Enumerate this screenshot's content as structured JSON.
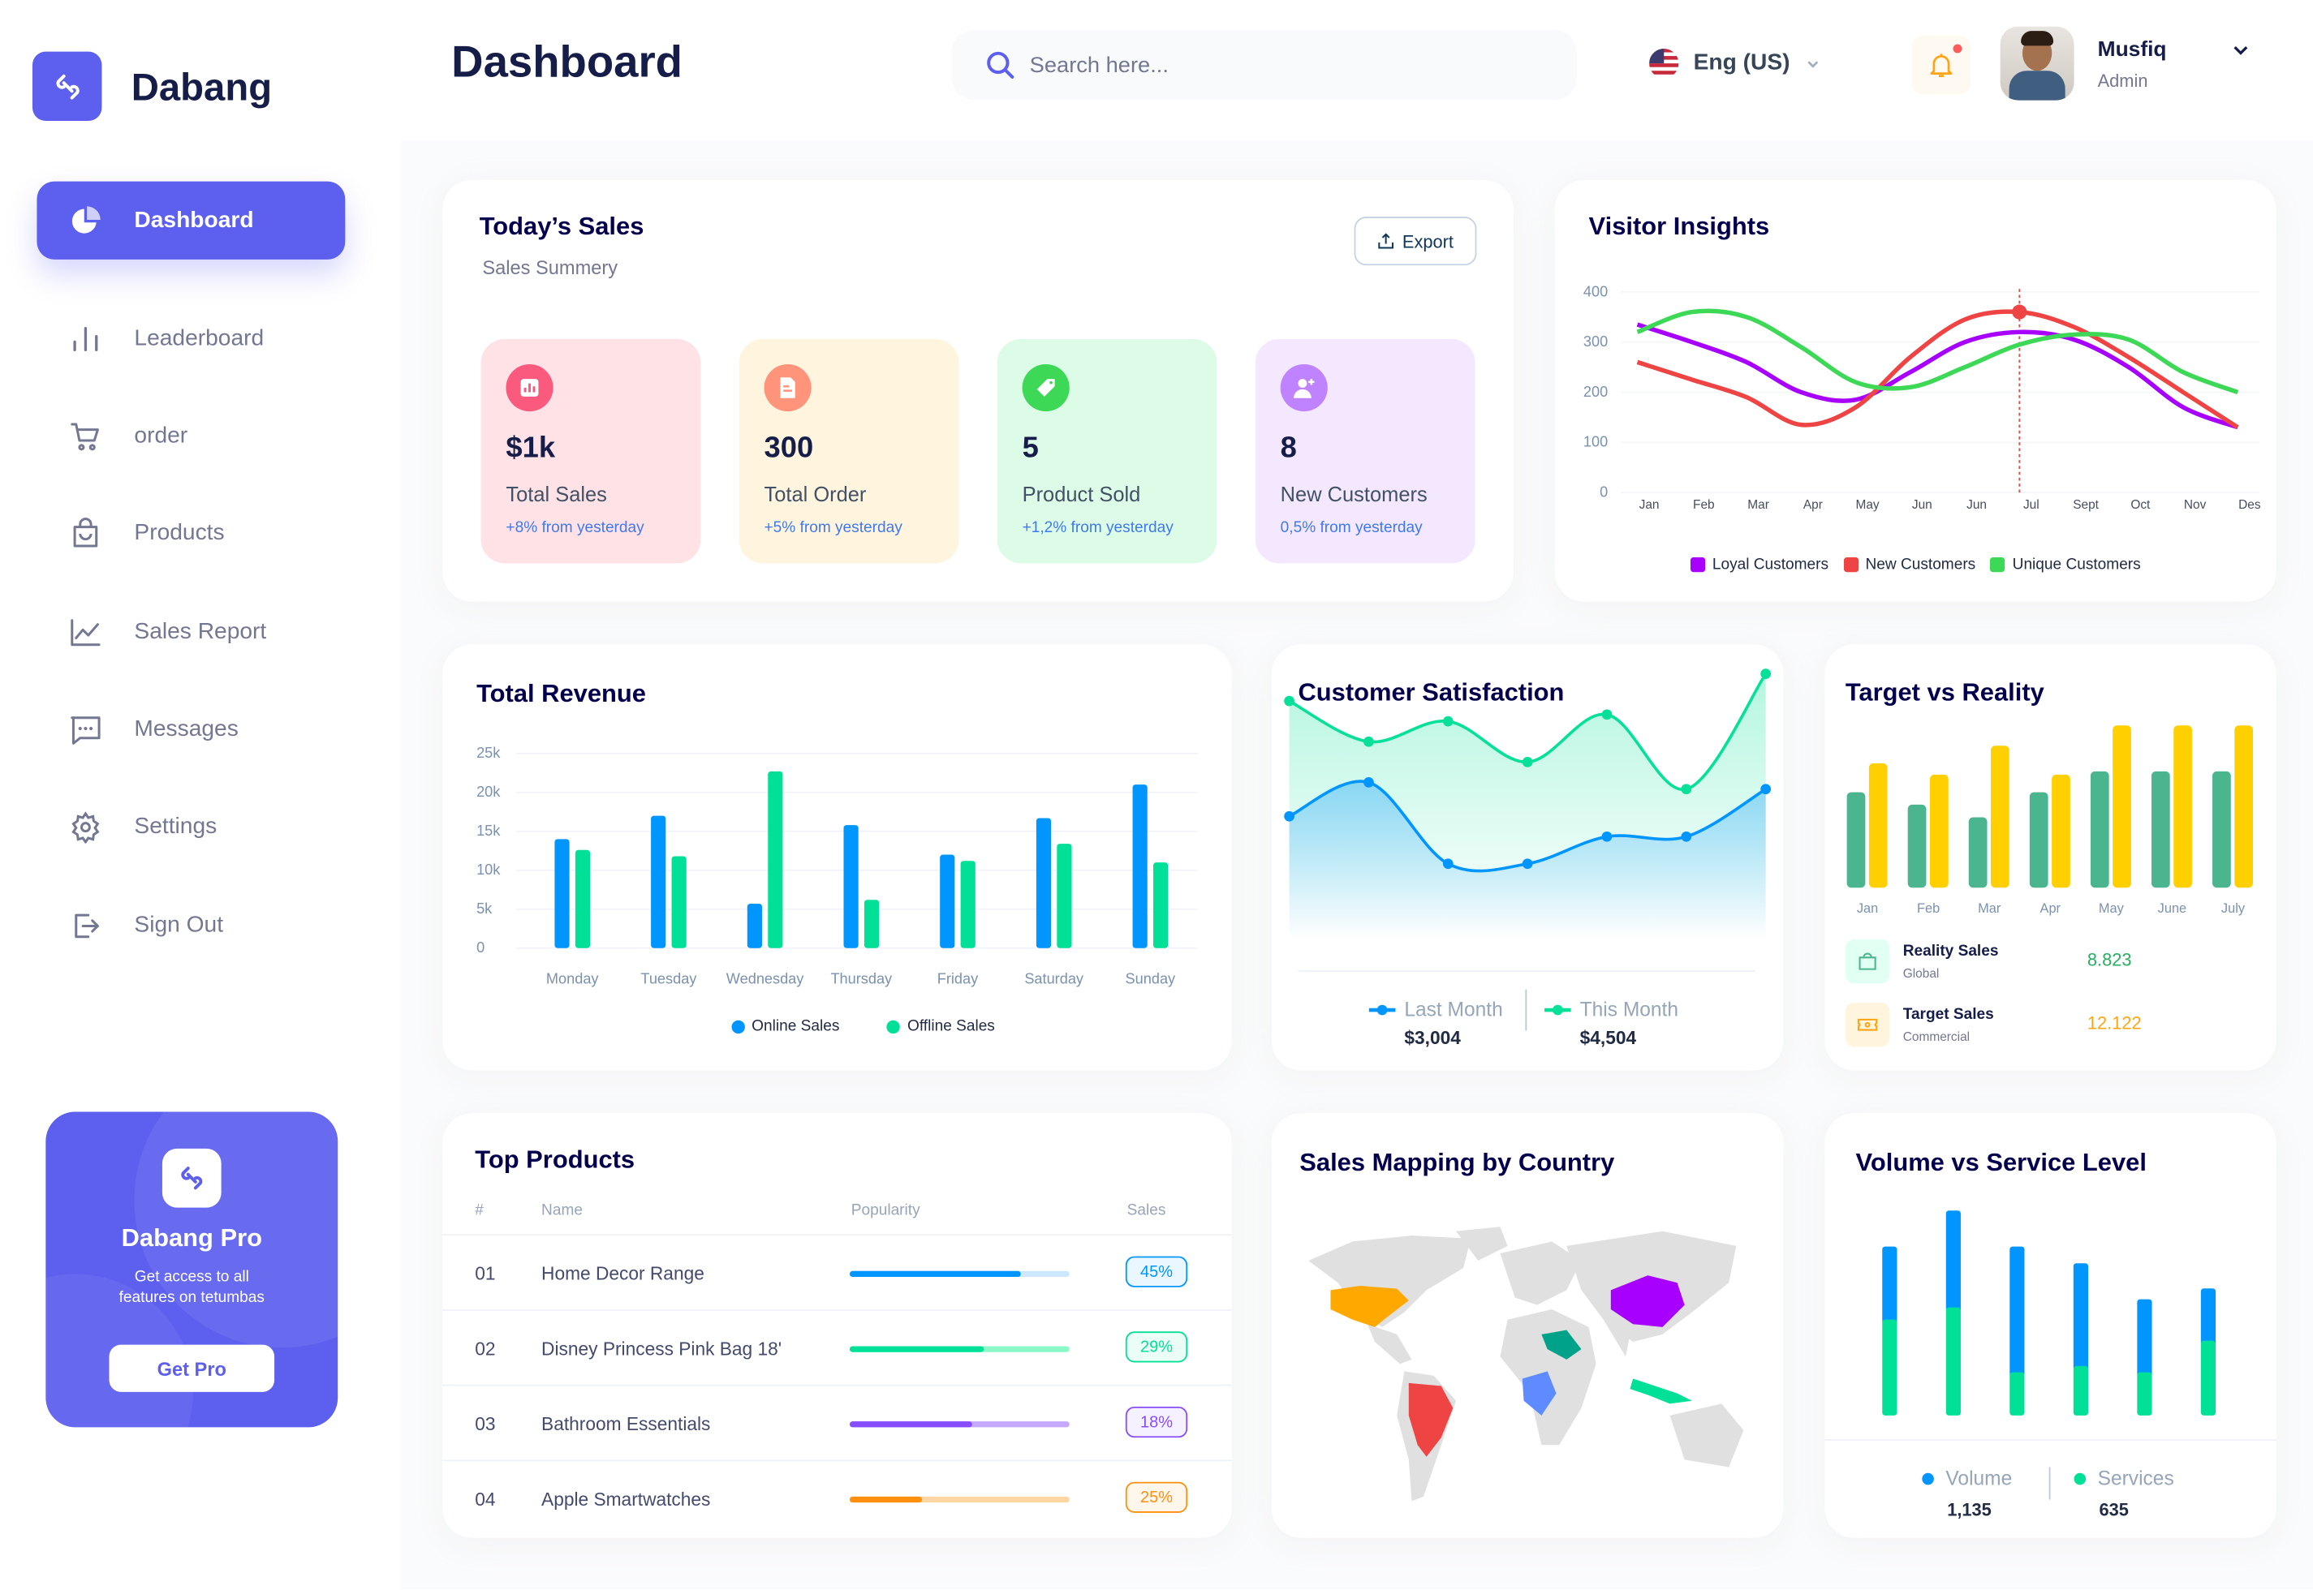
{
  "app": {
    "name": "Dabang"
  },
  "header": {
    "title": "Dashboard",
    "search_placeholder": "Search here...",
    "language": "Eng (US)",
    "user_name": "Musfiq",
    "user_role": "Admin"
  },
  "sidebar": {
    "items": [
      {
        "label": "Dashboard",
        "icon": "pie-chart-icon",
        "active": true
      },
      {
        "label": "Leaderboard",
        "icon": "bar-chart-icon"
      },
      {
        "label": "order",
        "icon": "cart-icon"
      },
      {
        "label": "Products",
        "icon": "shopping-bag-icon"
      },
      {
        "label": "Sales Report",
        "icon": "line-chart-icon"
      },
      {
        "label": "Messages",
        "icon": "message-icon"
      },
      {
        "label": "Settings",
        "icon": "gear-icon"
      },
      {
        "label": "Sign Out",
        "icon": "sign-out-icon"
      }
    ],
    "promo": {
      "title": "Dabang Pro",
      "text1": "Get access to all",
      "text2": "features on tetumbas",
      "button": "Get Pro"
    }
  },
  "todays_sales": {
    "title": "Today’s Sales",
    "subtitle": "Sales Summery",
    "export": "Export",
    "cards": [
      {
        "value": "$1k",
        "label": "Total Sales",
        "change": "+8% from yesterday",
        "bg": "#FFE2E5",
        "icon_bg": "#FA5A7D",
        "icon": "chart-icon"
      },
      {
        "value": "300",
        "label": "Total Order",
        "change": "+5% from yesterday",
        "bg": "#FFF4DE",
        "icon_bg": "#FF947A",
        "icon": "document-icon"
      },
      {
        "value": "5",
        "label": "Product Sold",
        "change": "+1,2% from yesterday",
        "bg": "#DCFCE7",
        "icon_bg": "#3CD856",
        "icon": "tag-icon"
      },
      {
        "value": "8",
        "label": "New Customers",
        "change": "0,5% from yesterday",
        "bg": "#F3E8FF",
        "icon_bg": "#BF83FF",
        "icon": "add-user-icon"
      }
    ]
  },
  "chart_data": [
    {
      "id": "visitor",
      "type": "line",
      "title": "Visitor Insights",
      "categories": [
        "Jan",
        "Feb",
        "Mar",
        "Apr",
        "May",
        "Jun",
        "Jun",
        "Jul",
        "Sept",
        "Oct",
        "Nov",
        "Des"
      ],
      "yticks": [
        0,
        100,
        200,
        300,
        400
      ],
      "ylim": [
        0,
        400
      ],
      "highlight": {
        "category_index": 7,
        "series": "New Customers",
        "value": 360
      },
      "legend": "bottom",
      "series": [
        {
          "name": "Loyal Customers",
          "color": "#A700FF",
          "values": [
            335,
            300,
            260,
            200,
            185,
            240,
            300,
            320,
            305,
            250,
            170,
            130
          ]
        },
        {
          "name": "New Customers",
          "color": "#EF4444",
          "values": [
            260,
            225,
            190,
            135,
            170,
            270,
            345,
            360,
            330,
            270,
            200,
            130
          ]
        },
        {
          "name": "Unique Customers",
          "color": "#3CD856",
          "values": [
            320,
            360,
            350,
            290,
            220,
            210,
            250,
            295,
            315,
            305,
            240,
            200
          ]
        }
      ]
    },
    {
      "id": "revenue",
      "type": "bar",
      "title": "Total Revenue",
      "categories": [
        "Monday",
        "Tuesday",
        "Wednesday",
        "Thursday",
        "Friday",
        "Saturday",
        "Sunday"
      ],
      "yticks": [
        "0",
        "5k",
        "10k",
        "15k",
        "20k",
        "25k"
      ],
      "ylim": [
        0,
        25000
      ],
      "grid": true,
      "legend": "bottom",
      "series": [
        {
          "name": "Online Sales",
          "color": "#0095FF",
          "values": [
            14000,
            17000,
            5700,
            15800,
            12000,
            16700,
            21000
          ]
        },
        {
          "name": "Offline Sales",
          "color": "#00E096",
          "values": [
            12600,
            11800,
            22700,
            6200,
            11200,
            13400,
            11000
          ]
        }
      ]
    },
    {
      "id": "satisfaction",
      "type": "area",
      "title": "Customer Satisfaction",
      "series": [
        {
          "name": "Last Month",
          "color": "#0095FF",
          "total": "$3,004",
          "values": [
            2.9,
            3.4,
            2.2,
            2.2,
            2.6,
            2.6,
            3.3
          ]
        },
        {
          "name": "This Month",
          "color": "#07E098",
          "total": "$4,504",
          "values": [
            4.6,
            4.0,
            4.3,
            3.7,
            4.4,
            3.3,
            5.0
          ]
        }
      ]
    },
    {
      "id": "target",
      "type": "bar",
      "title": "Target vs Reality",
      "categories": [
        "Jan",
        "Feb",
        "Mar",
        "Apr",
        "May",
        "June",
        "July"
      ],
      "series": [
        {
          "name": "Reality Sales",
          "color": "#4AB58E",
          "values": [
            353,
            307,
            260,
            353,
            430,
            430,
            430
          ]
        },
        {
          "name": "Target Sales",
          "color": "#FFCF00",
          "values": [
            460,
            418,
            525,
            418,
            600,
            600,
            600
          ]
        }
      ]
    },
    {
      "id": "volume",
      "type": "bar",
      "stacked": true,
      "title": "Volume vs Service Level",
      "series": [
        {
          "name": "Services",
          "color": "#00E096",
          "total": "635",
          "values": [
            355,
            400,
            160,
            183,
            160,
            277
          ]
        },
        {
          "name": "Volume",
          "color": "#0095FF",
          "total": "1,135",
          "values": [
            270,
            358,
            465,
            380,
            270,
            193
          ]
        }
      ]
    }
  ],
  "target_summary": [
    {
      "title": "Reality Sales",
      "sub": "Global",
      "value": "8.823",
      "color": "#27AE60",
      "bg": "#E2FFF3",
      "icon": "shopping-bag-icon"
    },
    {
      "title": "Target Sales",
      "sub": "Commercial",
      "value": "12.122",
      "color": "#FFA412",
      "bg": "#FFF4DE",
      "icon": "ticket-icon"
    }
  ],
  "top_products": {
    "title": "Top Products",
    "columns": [
      "#",
      "Name",
      "Popularity",
      "Sales"
    ],
    "rows": [
      {
        "rank": "01",
        "name": "Home Decor Range",
        "popularity": 0.78,
        "sales": "45%",
        "color": "#0095FF",
        "light": "#CDE7FF"
      },
      {
        "rank": "02",
        "name": "Disney Princess Pink Bag 18'",
        "popularity": 0.61,
        "sales": "29%",
        "color": "#00E096",
        "light": "#8CFAC7"
      },
      {
        "rank": "03",
        "name": "Bathroom Essentials",
        "popularity": 0.56,
        "sales": "18%",
        "color": "#884DFF",
        "light": "#C5A8FF"
      },
      {
        "rank": "04",
        "name": "Apple Smartwatches",
        "popularity": 0.33,
        "sales": "25%",
        "color": "#FF8F0D",
        "light": "#FFD5A4"
      }
    ]
  },
  "sales_map": {
    "title": "Sales Mapping by Country",
    "countries": [
      {
        "name": "United States",
        "color": "#FFA800"
      },
      {
        "name": "Brazil",
        "color": "#EF4444"
      },
      {
        "name": "China",
        "color": "#A700FF"
      },
      {
        "name": "Saudi Arabia",
        "color": "#00A389"
      },
      {
        "name": "DR Congo",
        "color": "#5E8BFF"
      },
      {
        "name": "Indonesia",
        "color": "#00E096"
      }
    ]
  }
}
